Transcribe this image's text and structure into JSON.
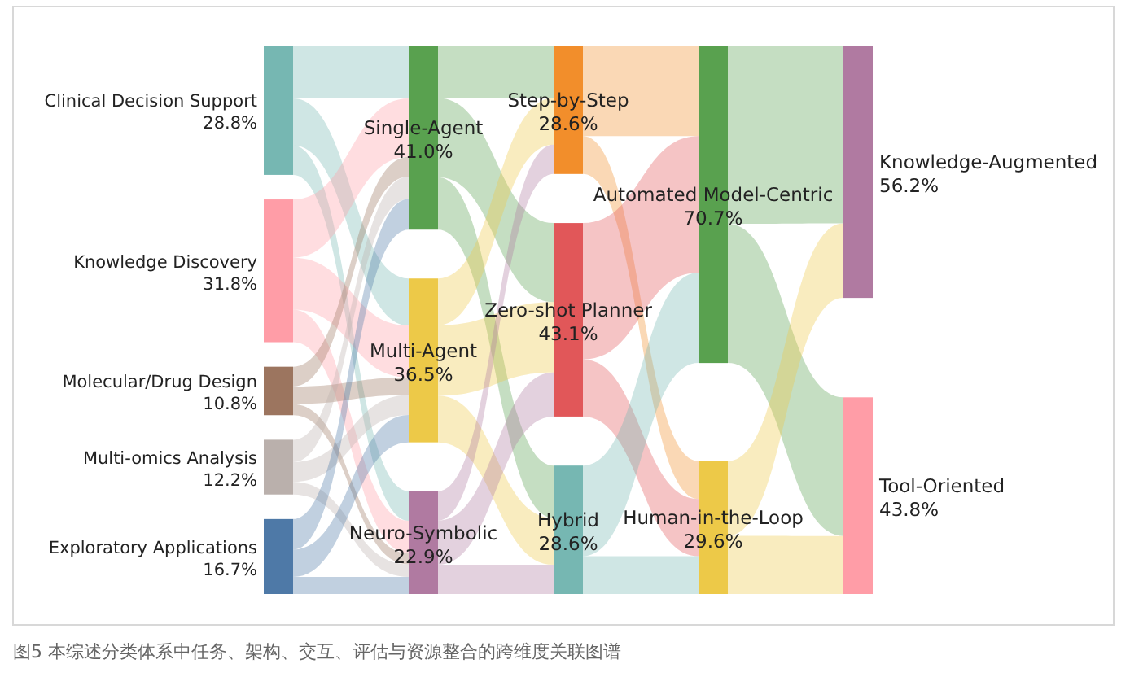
{
  "chart_data": {
    "type": "other",
    "categories": [
      "Clinical Decision Support",
      "Knowledge Discovery",
      "Molecular/Drug Design",
      "Multi-omics Analysis",
      "Exploratory Applications",
      "Single-Agent",
      "Multi-Agent",
      "Neuro-Symbolic",
      "Step-by-Step",
      "Zero-shot Planner",
      "Hybrid",
      "Automated Model-Centric",
      "Human-in-the-Loop",
      "Knowledge-Augmented",
      "Tool-Oriented"
    ],
    "values": [
      28.8,
      31.8,
      10.8,
      12.2,
      16.7,
      41.0,
      36.5,
      22.9,
      28.6,
      43.1,
      28.6,
      70.7,
      29.6,
      56.2,
      43.8
    ],
    "value_labels": [
      "28.8%",
      "31.8%",
      "10.8%",
      "12.2%",
      "16.7%",
      "41.0%",
      "36.5%",
      "22.9%",
      "28.6%",
      "43.1%",
      "28.6%",
      "70.7%",
      "29.6%",
      "56.2%",
      "43.8%"
    ],
    "colors": [
      "#76b7b2",
      "#ff9da7",
      "#9c755f",
      "#bab0ac",
      "#4e79a7",
      "#59a14f",
      "#edc948",
      "#b07aa1",
      "#f28e2b",
      "#e15759",
      "#76b7b2",
      "#59a14f",
      "#edc948",
      "#b07aa1",
      "#ff9da7"
    ],
    "annotations": [
      "图5 本综述分类体系中任务、架构、交互、评估与资源整合的跨维度关联图谱"
    ]
  }
}
